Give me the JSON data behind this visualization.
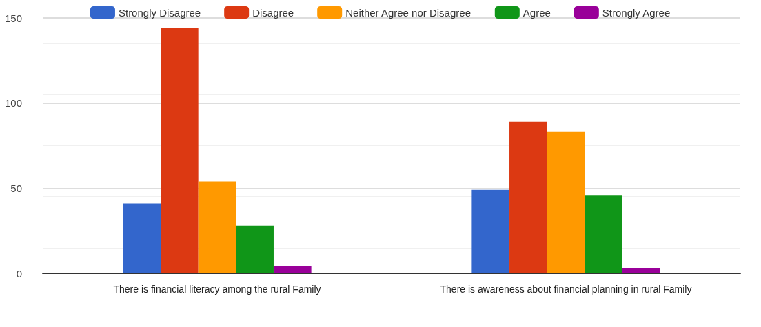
{
  "chart_data": {
    "type": "bar",
    "categories": [
      "There is financial literacy among the rural Family",
      "There is awareness about financial planning in rural Family"
    ],
    "series": [
      {
        "name": "Strongly Disagree",
        "color": "#3366cc",
        "values": [
          41,
          49
        ]
      },
      {
        "name": "Disagree",
        "color": "#dc3912",
        "values": [
          144,
          89
        ]
      },
      {
        "name": "Neither Agree nor Disagree",
        "color": "#ff9900",
        "values": [
          54,
          83
        ]
      },
      {
        "name": "Agree",
        "color": "#109618",
        "values": [
          28,
          46
        ]
      },
      {
        "name": "Strongly Agree",
        "color": "#990099",
        "values": [
          4,
          3
        ]
      }
    ],
    "ylim": [
      0,
      150
    ],
    "yticks": [
      0,
      50,
      100,
      150
    ],
    "grid": "y",
    "legend": "top"
  }
}
